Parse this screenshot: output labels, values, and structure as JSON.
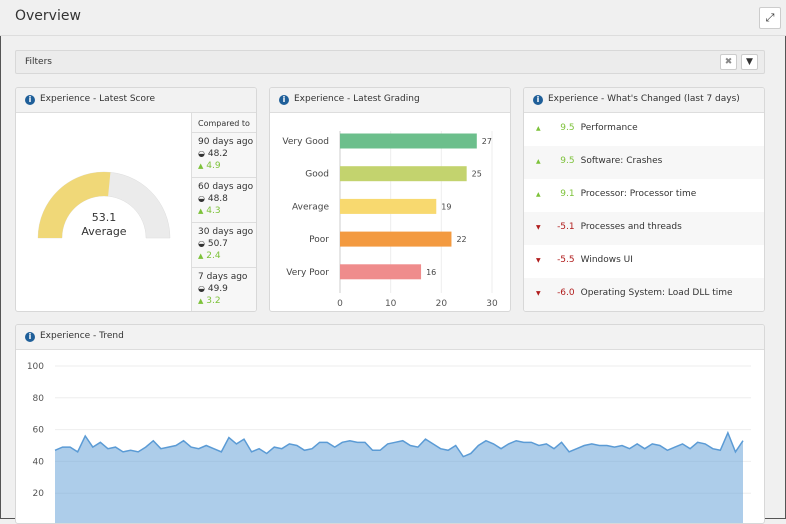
{
  "title": "Overview",
  "filters": {
    "label": "Filters"
  },
  "score": {
    "title": "Experience - Latest Score",
    "value": "53.1",
    "value_num": 53.1,
    "label": "Average",
    "compared_to": "Compared to",
    "comparisons": [
      {
        "period": "90 days ago",
        "score": "48.2",
        "delta": "4.9"
      },
      {
        "period": "60 days ago",
        "score": "48.8",
        "delta": "4.3"
      },
      {
        "period": "30 days ago",
        "score": "50.7",
        "delta": "2.4"
      },
      {
        "period": "7 days ago",
        "score": "49.9",
        "delta": "3.2"
      }
    ],
    "colors": {
      "fill": "#f0d878",
      "track": "#ebebeb",
      "up": "#7dc23a"
    }
  },
  "grading": {
    "title": "Experience - Latest Grading"
  },
  "changed": {
    "title": "Experience - What's Changed (last 7 days)",
    "items": [
      {
        "dir": "up",
        "value": "9.5",
        "label": "Performance"
      },
      {
        "dir": "up",
        "value": "9.5",
        "label": "Software: Crashes"
      },
      {
        "dir": "up",
        "value": "9.1",
        "label": "Processor: Processor time"
      },
      {
        "dir": "down",
        "value": "-5.1",
        "label": "Processes and threads"
      },
      {
        "dir": "down",
        "value": "-5.5",
        "label": "Windows UI"
      },
      {
        "dir": "down",
        "value": "-6.0",
        "label": "Operating System: Load DLL time"
      }
    ]
  },
  "trend": {
    "title": "Experience - Trend"
  },
  "chart_data": [
    {
      "type": "bar",
      "orientation": "horizontal",
      "categories": [
        "Very Good",
        "Good",
        "Average",
        "Poor",
        "Very Poor"
      ],
      "values": [
        27,
        25,
        19,
        22,
        16
      ],
      "colors": [
        "#6cbf8c",
        "#c3d36e",
        "#f8d96f",
        "#f39a40",
        "#ef8c8c"
      ],
      "xlim": [
        0,
        30
      ],
      "xticks": [
        "0",
        "10",
        "20",
        "30"
      ]
    },
    {
      "type": "area",
      "ylim": [
        0,
        100
      ],
      "yticks": [
        "20",
        "40",
        "60",
        "80",
        "100"
      ],
      "grid": true,
      "color": "#5b9bd5",
      "values": [
        47,
        49,
        49,
        46,
        56,
        49,
        52,
        48,
        49,
        46,
        47,
        46,
        49,
        53,
        48,
        49,
        50,
        53,
        49,
        48,
        50,
        48,
        46,
        55,
        51,
        54,
        46,
        48,
        45,
        49,
        48,
        51,
        50,
        47,
        48,
        52,
        52,
        49,
        52,
        53,
        52,
        52,
        47,
        47,
        51,
        52,
        53,
        50,
        49,
        54,
        51,
        48,
        47,
        50,
        43,
        45,
        50,
        53,
        51,
        48,
        51,
        53,
        52,
        52,
        50,
        51,
        48,
        52,
        46,
        48,
        50,
        51,
        50,
        50,
        49,
        50,
        48,
        51,
        48,
        51,
        50,
        47,
        49,
        51,
        48,
        52,
        51,
        48,
        47,
        58,
        46,
        53
      ]
    }
  ]
}
